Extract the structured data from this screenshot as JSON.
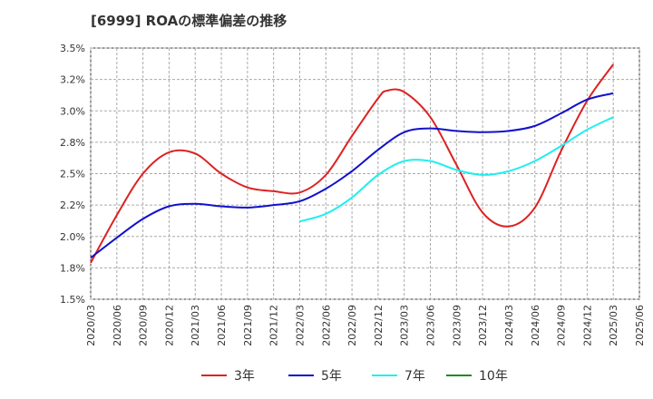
{
  "chart_data": {
    "type": "line",
    "title": "[6999]  ROAの標準偏差の推移",
    "xlabel": "",
    "ylabel": "",
    "ylim": [
      1.5,
      3.5
    ],
    "y_ticks": [
      "1.5%",
      "1.8%",
      "2.0%",
      "2.2%",
      "2.5%",
      "2.8%",
      "3.0%",
      "3.2%",
      "3.5%"
    ],
    "y_tick_values": [
      1.5,
      1.75,
      2.0,
      2.25,
      2.5,
      2.75,
      3.0,
      3.25,
      3.5
    ],
    "x_ticks": [
      "2020/03",
      "2020/06",
      "2020/09",
      "2020/12",
      "2021/03",
      "2021/06",
      "2021/09",
      "2021/12",
      "2022/03",
      "2022/06",
      "2022/09",
      "2022/12",
      "2023/03",
      "2023/06",
      "2023/09",
      "2023/12",
      "2024/03",
      "2024/06",
      "2024/09",
      "2024/12",
      "2025/03",
      "2025/06"
    ],
    "grid": true,
    "legend_position": "bottom",
    "series": [
      {
        "name": "3年",
        "color": "#dd2222",
        "x": [
          "2020/03",
          "2020/06",
          "2020/09",
          "2020/12",
          "2021/03",
          "2021/06",
          "2021/09",
          "2021/12",
          "2022/03",
          "2022/06",
          "2022/09",
          "2022/12",
          "2023/01",
          "2023/03",
          "2023/06",
          "2023/09",
          "2023/12",
          "2024/03",
          "2024/06",
          "2024/09",
          "2024/12",
          "2025/03"
        ],
        "values": [
          1.79,
          2.17,
          2.5,
          2.67,
          2.66,
          2.5,
          2.39,
          2.36,
          2.35,
          2.49,
          2.8,
          3.1,
          3.16,
          3.15,
          2.95,
          2.57,
          2.19,
          2.08,
          2.23,
          2.68,
          3.08,
          3.37
        ]
      },
      {
        "name": "5年",
        "color": "#1111cc",
        "x": [
          "2020/03",
          "2020/06",
          "2020/09",
          "2020/12",
          "2021/03",
          "2021/06",
          "2021/09",
          "2021/12",
          "2022/03",
          "2022/06",
          "2022/09",
          "2022/12",
          "2023/03",
          "2023/06",
          "2023/09",
          "2023/12",
          "2024/03",
          "2024/06",
          "2024/09",
          "2024/12",
          "2025/03"
        ],
        "values": [
          1.83,
          1.99,
          2.14,
          2.24,
          2.26,
          2.24,
          2.23,
          2.25,
          2.28,
          2.38,
          2.52,
          2.69,
          2.83,
          2.86,
          2.84,
          2.83,
          2.84,
          2.88,
          2.98,
          3.09,
          3.14
        ]
      },
      {
        "name": "7年",
        "color": "#22eeee",
        "x": [
          "2022/03",
          "2022/06",
          "2022/09",
          "2022/12",
          "2023/03",
          "2023/06",
          "2023/09",
          "2023/12",
          "2024/03",
          "2024/06",
          "2024/09",
          "2024/12",
          "2025/03"
        ],
        "values": [
          2.12,
          2.18,
          2.31,
          2.49,
          2.6,
          2.6,
          2.53,
          2.49,
          2.52,
          2.6,
          2.72,
          2.85,
          2.95
        ]
      },
      {
        "name": "10年",
        "color": "#228822",
        "x": [],
        "values": []
      }
    ]
  }
}
